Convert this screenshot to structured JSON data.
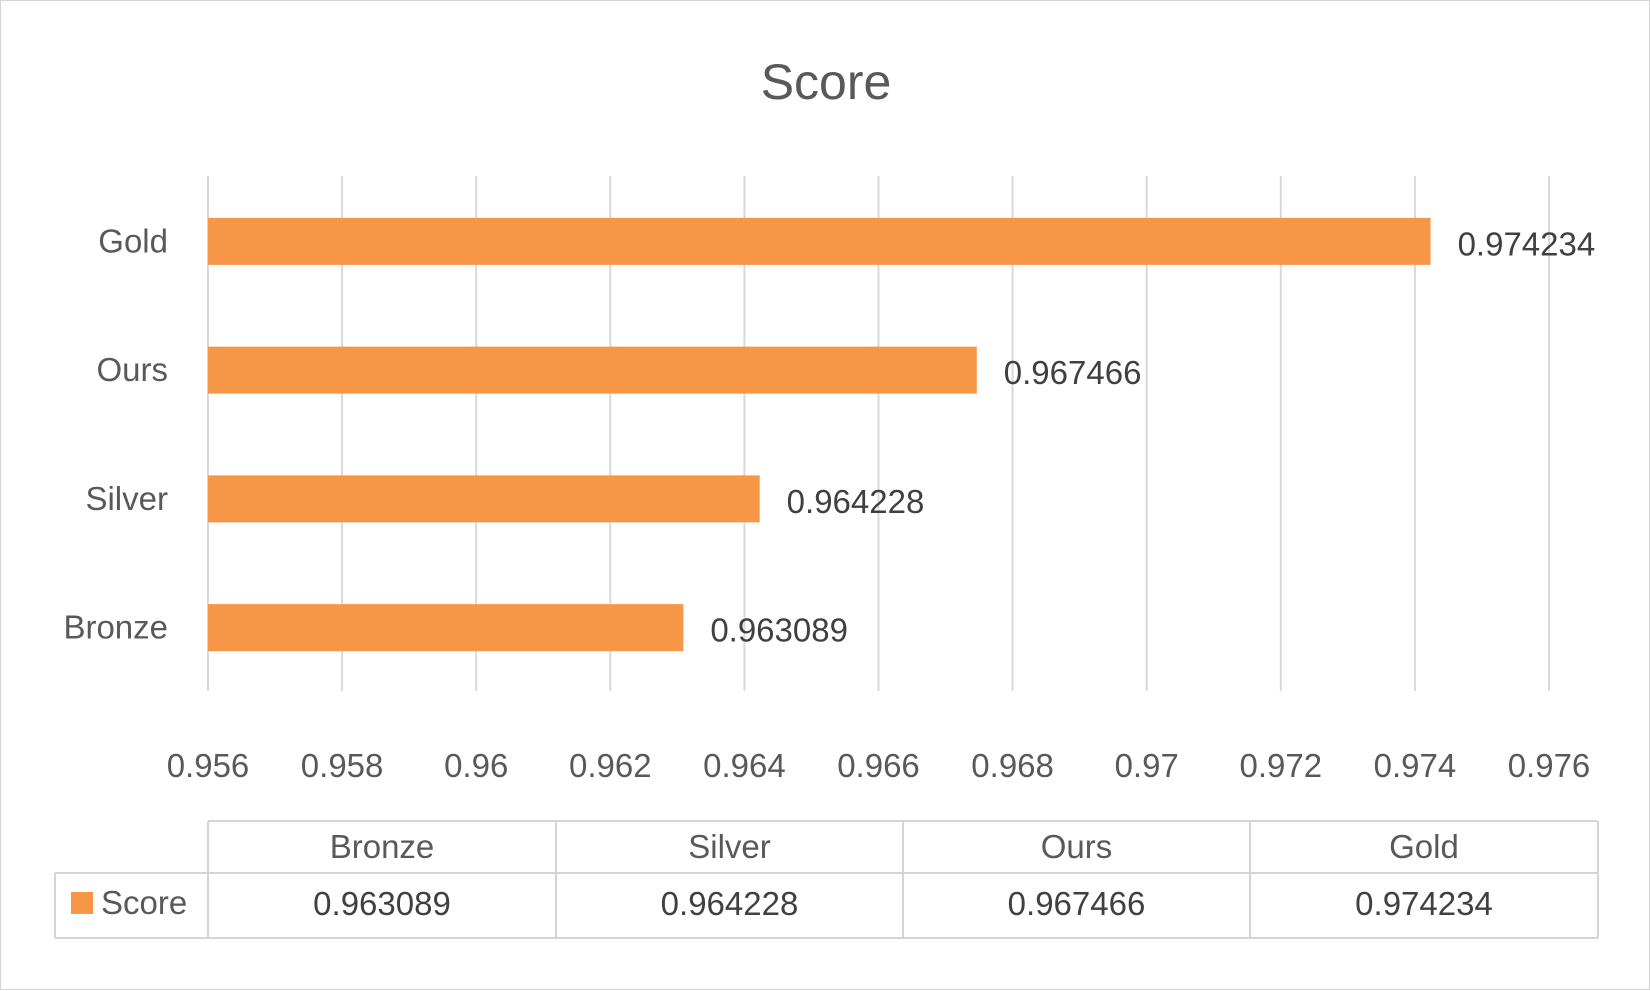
{
  "chart_data": {
    "type": "bar",
    "orientation": "horizontal",
    "title": "Score",
    "categories": [
      "Bronze",
      "Silver",
      "Ours",
      "Gold"
    ],
    "series": [
      {
        "name": "Score",
        "values": [
          0.963089,
          0.964228,
          0.967466,
          0.974234
        ]
      }
    ],
    "data_labels": [
      "0.963089",
      "0.964228",
      "0.967466",
      "0.974234"
    ],
    "xlim": [
      0.956,
      0.976
    ],
    "x_ticks": [
      "0.956",
      "0.958",
      "0.96",
      "0.962",
      "0.964",
      "0.966",
      "0.968",
      "0.97",
      "0.972",
      "0.974",
      "0.976"
    ],
    "grid": "vertical",
    "legend": "data-table",
    "data_table": {
      "header": [
        "Bronze",
        "Silver",
        "Ours",
        "Gold"
      ],
      "row_label": "Score",
      "row_values": [
        "0.963089",
        "0.964228",
        "0.967466",
        "0.974234"
      ]
    },
    "bar_color": "#F79646"
  }
}
